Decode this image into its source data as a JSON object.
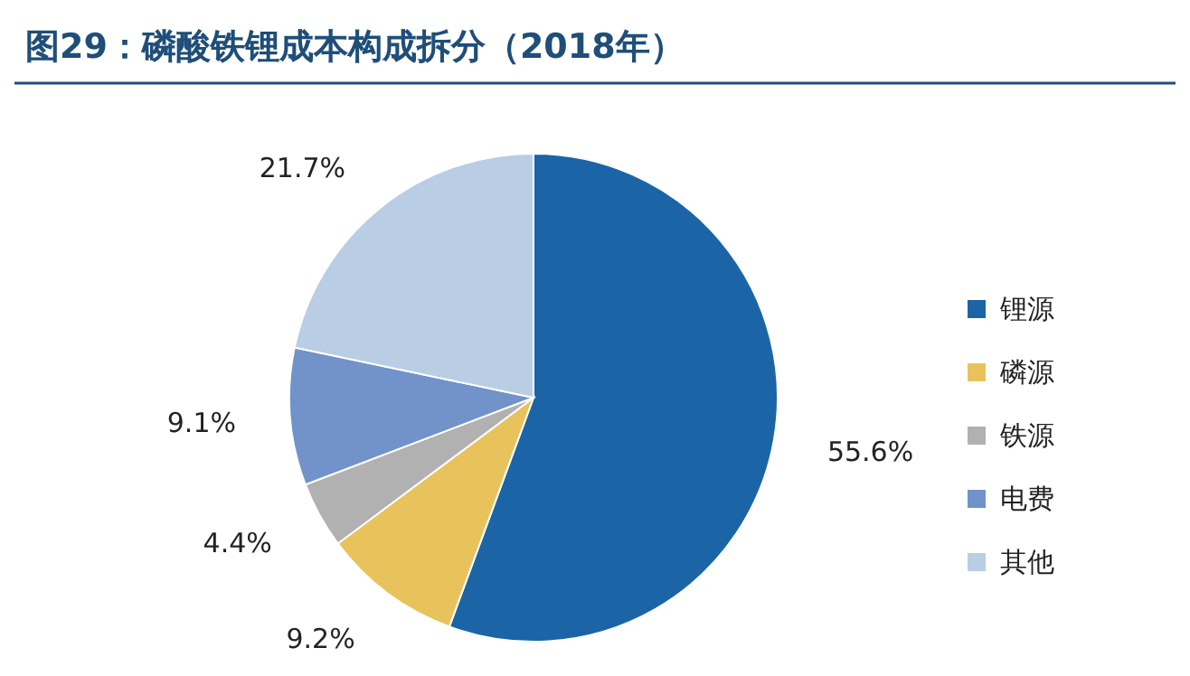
{
  "chart_data": {
    "type": "pie",
    "title": "图29：磷酸铁锂成本构成拆分（2018年）",
    "categories": [
      "锂源",
      "磷源",
      "铁源",
      "电费",
      "其他"
    ],
    "values": [
      55.6,
      9.2,
      4.4,
      9.1,
      21.7
    ],
    "value_labels": [
      "55.6%",
      "9.2%",
      "4.4%",
      "9.1%",
      "21.7%"
    ],
    "colors": [
      "#1b65a6",
      "#e8c35c",
      "#b1b1b1",
      "#7193c9",
      "#b9cde5"
    ],
    "legend": "right"
  }
}
